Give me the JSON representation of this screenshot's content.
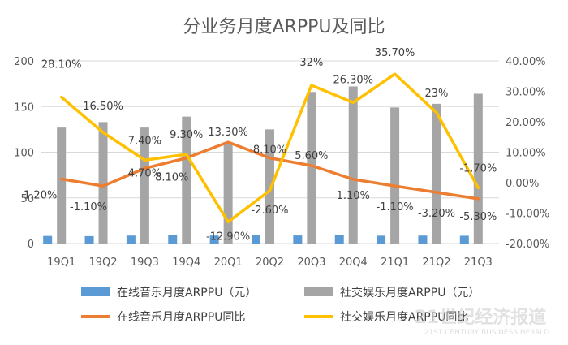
{
  "chart_data": {
    "type": "bar+line",
    "title": "分业务月度ARPPU及同比",
    "categories": [
      "19Q1",
      "19Q2",
      "19Q3",
      "19Q4",
      "20Q1",
      "20Q2",
      "20Q3",
      "20Q4",
      "21Q1",
      "21Q2",
      "21Q3"
    ],
    "y_left": {
      "min": 0,
      "max": 200,
      "ticks": [
        "0",
        "50",
        "100",
        "150",
        "200"
      ]
    },
    "y_right": {
      "min": -20,
      "max": 40,
      "ticks": [
        "-20.00%",
        "-10.00%",
        "0.00%",
        "10.00%",
        "20.00%",
        "30.00%",
        "40.00%"
      ]
    },
    "series": [
      {
        "name": "在线音乐月度ARPPU（元）",
        "type": "bar",
        "axis": "left",
        "color": "#5b9bd5",
        "values": [
          8.3,
          8.1,
          8.7,
          8.9,
          8.7,
          8.9,
          8.8,
          9.0,
          8.6,
          8.7,
          8.5
        ]
      },
      {
        "name": "社交娱乐月度ARPPU（元）",
        "type": "bar",
        "axis": "left",
        "color": "#a5a5a5",
        "values": [
          127,
          133,
          127,
          139,
          111,
          125,
          166,
          172,
          149,
          153,
          164
        ]
      },
      {
        "name": "在线音乐月度ARPPU同比",
        "type": "line",
        "axis": "right",
        "color": "#ed7d31",
        "values": [
          1.2,
          -1.1,
          4.7,
          8.1,
          13.3,
          8.1,
          5.6,
          1.1,
          -1.1,
          -3.2,
          -5.3
        ],
        "labels": [
          "1.20%",
          "-1.10%",
          "4.70%",
          "8.10%",
          "13.30%",
          "8.10%",
          "5.60%",
          "1.10%",
          "-1.10%",
          "-3.20%",
          "-5.30%"
        ]
      },
      {
        "name": "社交娱乐月度ARPPU同比",
        "type": "line",
        "axis": "right",
        "color": "#ffc000",
        "values": [
          28.1,
          16.5,
          7.4,
          9.3,
          -12.9,
          -2.6,
          32,
          26.3,
          35.7,
          23,
          -1.7
        ],
        "labels": [
          "28.10%",
          "16.50%",
          "7.40%",
          "9.30%",
          "-12.90%",
          "-2.60%",
          "32%",
          "26.30%",
          "35.70%",
          "23%",
          "-1.70%"
        ]
      }
    ],
    "grid": true,
    "legend": "bottom"
  },
  "watermark": {
    "main": "21世纪经济报道",
    "sub": "21ST CENTURY BUSINESS HERALD"
  }
}
